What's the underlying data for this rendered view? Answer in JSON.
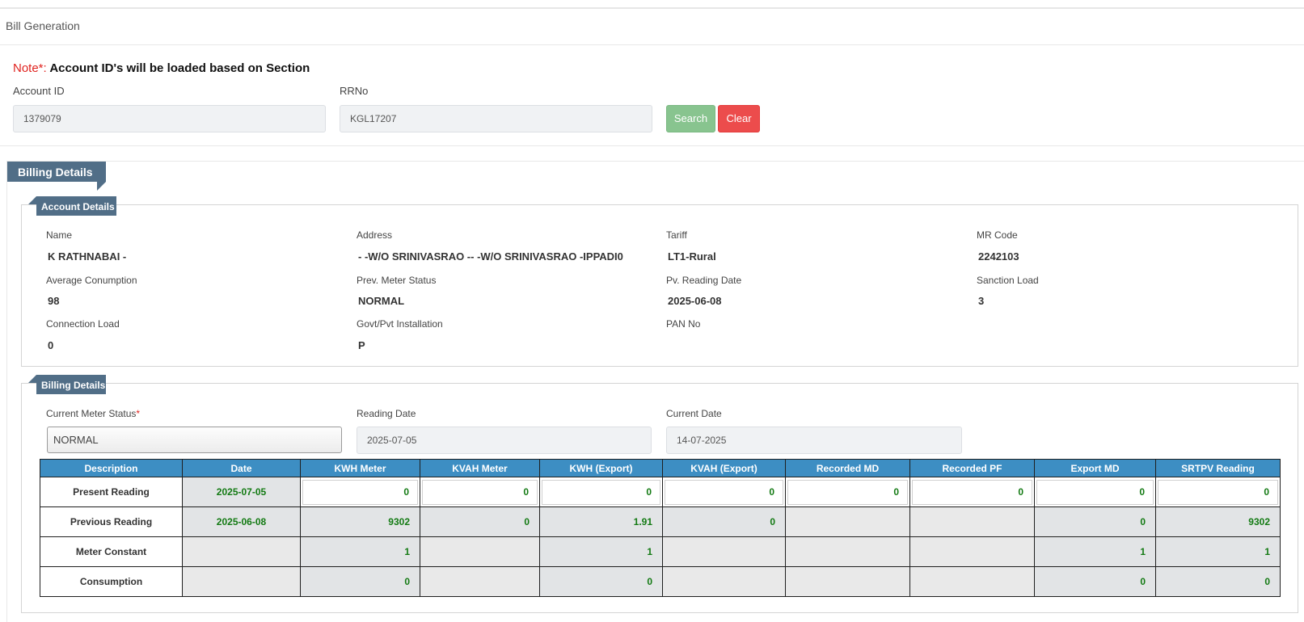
{
  "page": {
    "title": "Bill Generation"
  },
  "search": {
    "note_label": "Note*:",
    "note_text": " Account ID's will be loaded based on Section",
    "account_id_label": "Account ID",
    "account_id_value": "1379079",
    "rrno_label": "RRNo",
    "rrno_value": "KGL17207",
    "search_label": "Search",
    "clear_label": "Clear"
  },
  "billing": {
    "section_title": "Billing Details",
    "account_details": {
      "title": "Account Details",
      "fields": [
        {
          "label": "Name",
          "value": "K RATHNABAI -"
        },
        {
          "label": "Address",
          "value": "- -W/O SRINIVASRAO -- -W/O SRINIVASRAO -IPPADI0"
        },
        {
          "label": "Tariff",
          "value": "LT1-Rural"
        },
        {
          "label": "MR Code",
          "value": "2242103"
        },
        {
          "label": "Average Conumption",
          "value": "98"
        },
        {
          "label": "Prev. Meter Status",
          "value": "NORMAL"
        },
        {
          "label": "Pv. Reading Date",
          "value": "2025-06-08"
        },
        {
          "label": "Sanction Load",
          "value": "3"
        },
        {
          "label": "Connection Load",
          "value": "0"
        },
        {
          "label": "Govt/Pvt Installation",
          "value": "P"
        },
        {
          "label": "PAN No",
          "value": ""
        }
      ]
    },
    "billing_details": {
      "title": "Billing Details",
      "meter_status_label": "Current Meter Status",
      "meter_status_required": "*",
      "meter_status_value": "NORMAL",
      "reading_date_label": "Reading Date",
      "reading_date_value": "2025-07-05",
      "current_date_label": "Current Date",
      "current_date_value": "14-07-2025"
    },
    "table": {
      "headers": [
        "Description",
        "Date",
        "KWH Meter",
        "KVAH Meter",
        "KWH (Export)",
        "KVAH (Export)",
        "Recorded MD",
        "Recorded PF",
        "Export MD",
        "SRTPV Reading"
      ],
      "rows": [
        {
          "desc": "Present Reading",
          "cells": [
            "2025-07-05",
            "0",
            "0",
            "0",
            "0",
            "0",
            "0",
            "0",
            "0"
          ]
        },
        {
          "desc": "Previous Reading",
          "cells": [
            "2025-06-08",
            "9302",
            "0",
            "1.91",
            "0",
            "",
            "",
            "0",
            "9302"
          ]
        },
        {
          "desc": "Meter Constant",
          "cells": [
            "",
            "1",
            "",
            "1",
            "",
            "",
            "",
            "1",
            "1"
          ]
        },
        {
          "desc": "Consumption",
          "cells": [
            "",
            "0",
            "",
            "0",
            "",
            "",
            "",
            "0",
            "0"
          ]
        }
      ]
    }
  }
}
